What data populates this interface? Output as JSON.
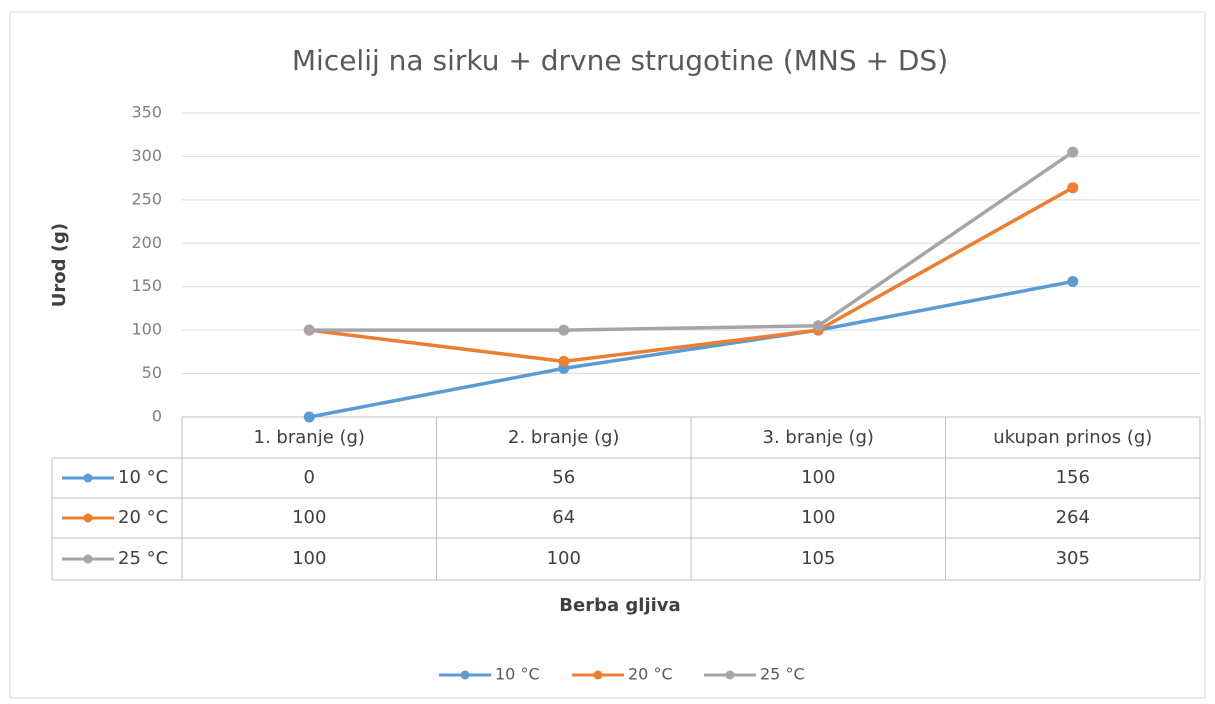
{
  "chart_data": {
    "type": "line",
    "title": "Micelij na sirku + drvne strugotine (MNS + DS)",
    "x_label": "Berba gljiva",
    "y_label": "Urod (g)",
    "categories": [
      "1. branje (g)",
      "2. branje (g)",
      "3. branje (g)",
      "ukupan prinos (g)"
    ],
    "series": [
      {
        "name": "10 °C",
        "color": "#5b9bd5",
        "values": [
          0,
          56,
          100,
          156
        ]
      },
      {
        "name": "20 °C",
        "color": "#ed7d31",
        "values": [
          100,
          64,
          100,
          264
        ]
      },
      {
        "name": "25 °C",
        "color": "#a5a5a5",
        "values": [
          100,
          100,
          105,
          305
        ]
      }
    ],
    "ylim": [
      0,
      350
    ],
    "yticks": [
      0,
      50,
      100,
      150,
      200,
      250,
      300,
      350
    ],
    "grid": true,
    "data_table": true,
    "legend": "bottom"
  }
}
